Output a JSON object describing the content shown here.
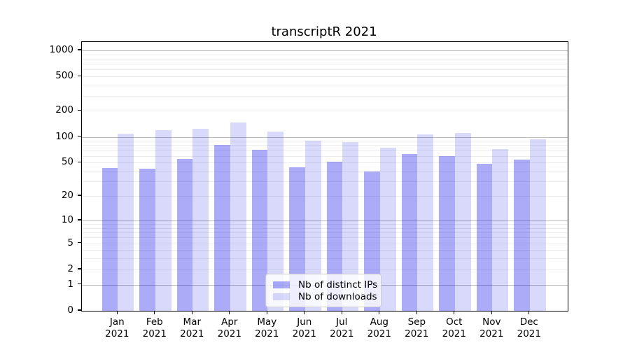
{
  "chart_data": {
    "type": "bar",
    "title": "transcriptR 2021",
    "scale": "log1p",
    "ylim": [
      0,
      1250
    ],
    "grid": true,
    "categories": [
      "Jan",
      "Feb",
      "Mar",
      "Apr",
      "May",
      "Jun",
      "Jul",
      "Aug",
      "Sep",
      "Oct",
      "Nov",
      "Dec"
    ],
    "category_year": "2021",
    "series": [
      {
        "name": "Nb of distinct IPs",
        "color": "rgba(0,0,235,0.33)",
        "values": [
          43,
          42,
          55,
          81,
          71,
          44,
          51,
          39,
          63,
          60,
          48,
          54
        ]
      },
      {
        "name": "Nb of downloads",
        "color": "rgba(0,0,235,0.15)",
        "values": [
          108,
          120,
          123,
          146,
          116,
          91,
          87,
          75,
          107,
          110,
          72,
          94
        ]
      }
    ],
    "yticks": [
      0,
      1,
      2,
      5,
      10,
      20,
      50,
      100,
      200,
      500,
      1000
    ],
    "major_gridlines": [
      1,
      10,
      100,
      1000
    ],
    "minor_gridlines": [
      2,
      3,
      4,
      5,
      6,
      7,
      8,
      9,
      20,
      30,
      40,
      50,
      60,
      70,
      80,
      90,
      200,
      300,
      400,
      500,
      600,
      700,
      800,
      900
    ],
    "legend": {
      "position": "lower-center"
    }
  },
  "colors": {
    "major_grid": "#b9b9b9",
    "minor_grid": "#ededed",
    "frame": "#000000",
    "text": "#000000",
    "legend_border": "#cccccc",
    "legend_background": "rgba(255,255,255,0.8)"
  }
}
